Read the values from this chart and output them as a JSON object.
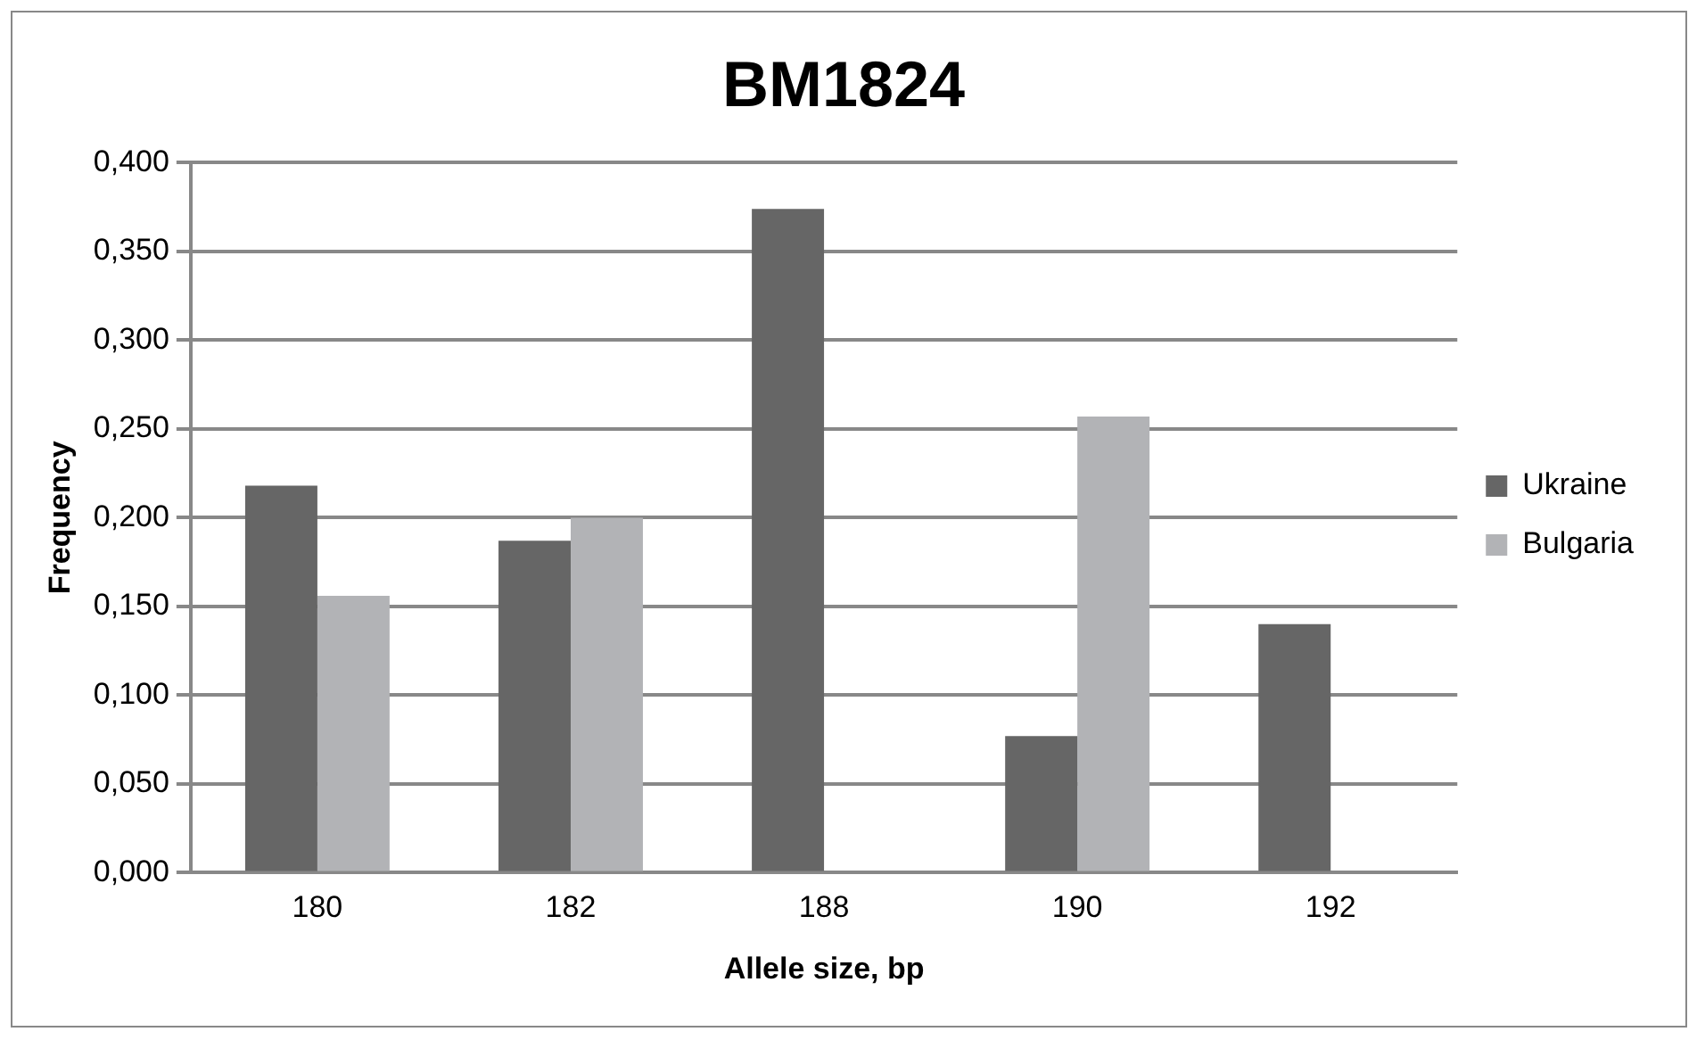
{
  "chart_data": {
    "type": "bar",
    "title": "BM1824",
    "xlabel": "Allele size, bp",
    "ylabel": "Frequency",
    "categories": [
      "180",
      "182",
      "188",
      "190",
      "192"
    ],
    "series": [
      {
        "name": "Ukraine",
        "color": "#666666",
        "values": [
          0.218,
          0.187,
          0.374,
          0.077,
          0.14
        ]
      },
      {
        "name": "Bulgaria",
        "color": "#b2b3b6",
        "values": [
          0.156,
          0.2,
          0,
          0.257,
          0
        ]
      }
    ],
    "ylim": [
      0,
      0.4
    ],
    "yticks": [
      {
        "value": 0,
        "label": "0,000"
      },
      {
        "value": 0.05,
        "label": "0,050"
      },
      {
        "value": 0.1,
        "label": "0,100"
      },
      {
        "value": 0.15,
        "label": "0,150"
      },
      {
        "value": 0.2,
        "label": "0,200"
      },
      {
        "value": 0.25,
        "label": "0,250"
      },
      {
        "value": 0.3,
        "label": "0,300"
      },
      {
        "value": 0.35,
        "label": "0,350"
      },
      {
        "value": 0.4,
        "label": "0,400"
      }
    ],
    "grid": "y",
    "legend": "right"
  }
}
